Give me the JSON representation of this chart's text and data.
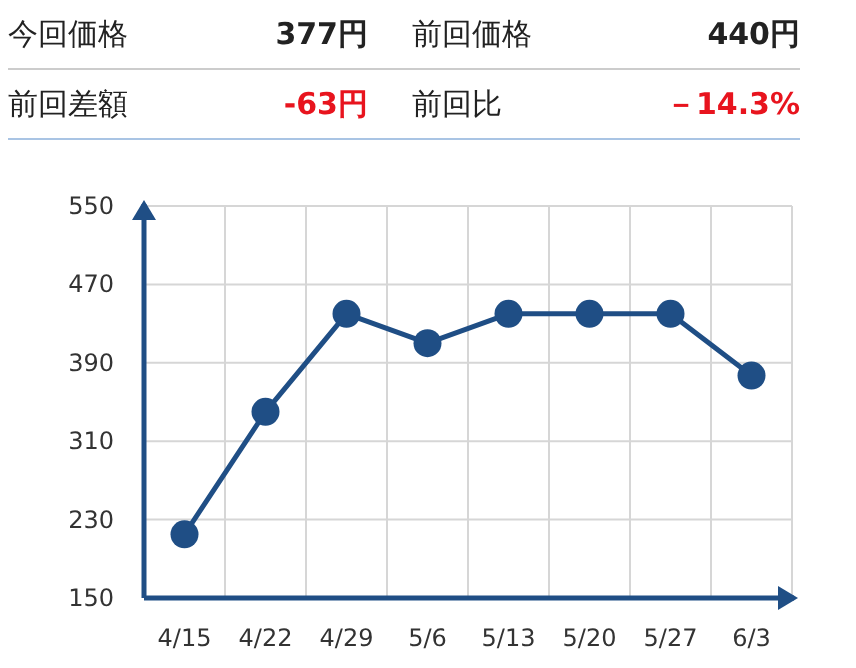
{
  "chart_data": [
    {
      "type": "other",
      "annotations": [
        "今回価格",
        "377円",
        "前回価格",
        "440円",
        "前回差額",
        "-63円",
        "前回比",
        "－14.3%"
      ]
    },
    {
      "type": "line",
      "categories": [
        "4/15",
        "4/22",
        "4/29",
        "5/6",
        "5/13",
        "5/20",
        "5/27",
        "6/3"
      ],
      "series": [
        {
          "color": "#1f4e85",
          "values": [
            215,
            340,
            440,
            410,
            440,
            440,
            440,
            377
          ]
        }
      ],
      "ylim": [
        150,
        550
      ],
      "yticks": [
        150,
        230,
        310,
        390,
        470,
        550
      ],
      "grid": true,
      "marker": "circle",
      "line_style": "solid"
    }
  ]
}
